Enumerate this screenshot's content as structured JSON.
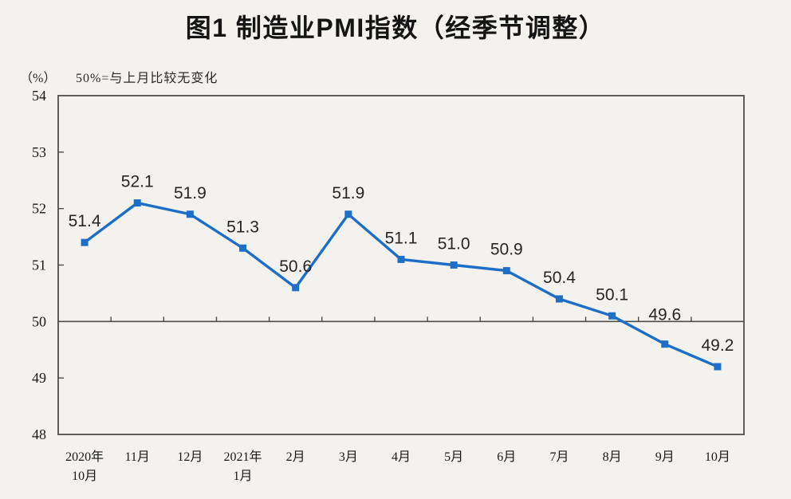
{
  "chart_data": {
    "type": "line",
    "title": "图1 制造业PMI指数（经季节调整）",
    "unit_label": "（%）",
    "reference_note": "50%=与上月比较无变化",
    "categories": [
      [
        "2020年",
        "10月"
      ],
      [
        "11月"
      ],
      [
        "12月"
      ],
      [
        "2021年",
        "1月"
      ],
      [
        "2月"
      ],
      [
        "3月"
      ],
      [
        "4月"
      ],
      [
        "5月"
      ],
      [
        "6月"
      ],
      [
        "7月"
      ],
      [
        "8月"
      ],
      [
        "9月"
      ],
      [
        "10月"
      ]
    ],
    "values": [
      51.4,
      52.1,
      51.9,
      51.3,
      50.6,
      51.9,
      51.1,
      51.0,
      50.9,
      50.4,
      50.1,
      49.6,
      49.2
    ],
    "ylabel": "%",
    "ylim": [
      48,
      54
    ],
    "yticks": [
      48,
      49,
      50,
      51,
      52,
      53,
      54
    ],
    "reference_line": 50,
    "grid": false,
    "legend": "none",
    "marker": "square",
    "colors": {
      "line": "#1d6ec6",
      "marker": "#1d6ec6",
      "axis": "#4d4d4d",
      "data_label": "#262626",
      "axis_label": "#1a1a1a",
      "background": "#f4f2ef"
    }
  }
}
